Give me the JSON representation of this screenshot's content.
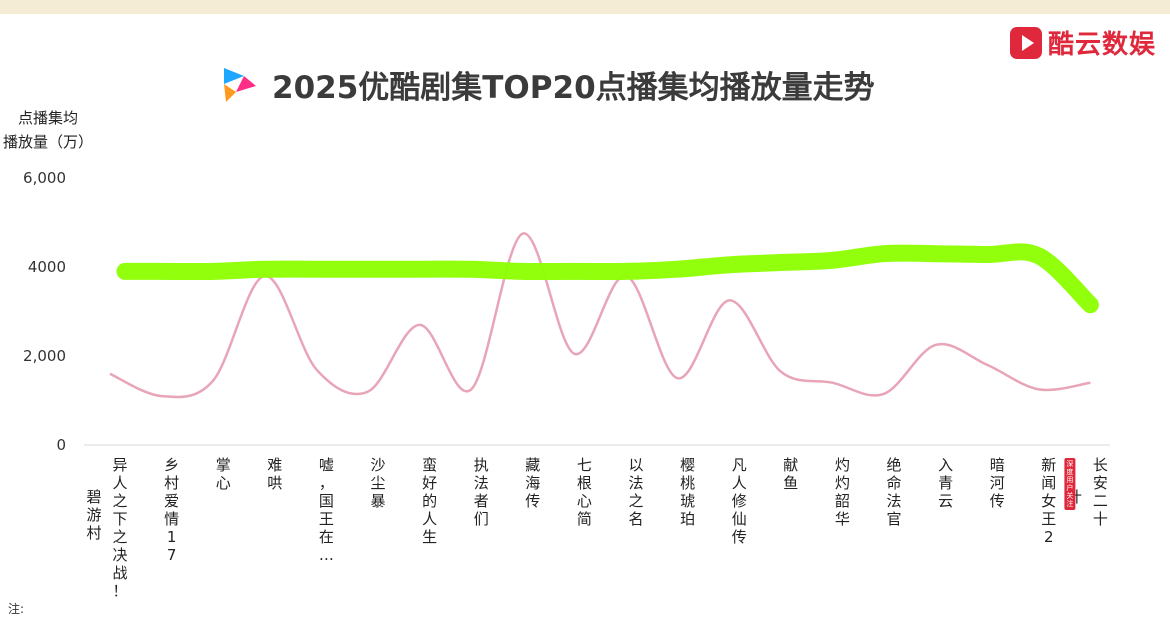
{
  "brand": {
    "name": "酷云数娱",
    "icon": "play-logo-icon",
    "color": "#e0283c"
  },
  "app_logo": {
    "icon": "youku-logo-icon"
  },
  "note": "注:",
  "chart_data": {
    "type": "line",
    "title": "2025优酷剧集TOP20点播集均播放量走势",
    "ylabel_lines": [
      "点播集均",
      "播放量（万）"
    ],
    "xlabel": "",
    "ylim": [
      0,
      6000
    ],
    "yticks": [
      {
        "value": 0,
        "label": "0"
      },
      {
        "value": 2000,
        "label": "2,000"
      },
      {
        "value": 4000,
        "label": "4000"
      },
      {
        "value": 6000,
        "label": "6,000"
      }
    ],
    "categories": [
      "异人之下之决战！碧游村",
      "乡村爱情17",
      "掌心",
      "难哄",
      "嘘，国王在…",
      "沙尘暴",
      "蛮好的人生",
      "执法者们",
      "藏海传",
      "七根心简",
      "以法之名",
      "樱桃琥珀",
      "凡人修仙传",
      "献鱼",
      "灼灼韶华",
      "绝命法官",
      "入青云",
      "暗河传",
      "新闻女王2",
      "长安二十四计"
    ],
    "x_tick_labels": [
      [
        "异人之下之决战！",
        "碧游村"
      ],
      [
        "乡村爱情17"
      ],
      [
        "掌心"
      ],
      [
        "难哄"
      ],
      [
        "嘘，国王在…"
      ],
      [
        "沙尘暴"
      ],
      [
        "蛮好的人生"
      ],
      [
        "执法者们"
      ],
      [
        "藏海传"
      ],
      [
        "七根心简"
      ],
      [
        "以法之名"
      ],
      [
        "樱桃琥珀"
      ],
      [
        "凡人修仙传"
      ],
      [
        "献鱼"
      ],
      [
        "灼灼韶华"
      ],
      [
        "绝命法官"
      ],
      [
        "入青云"
      ],
      [
        "暗河传"
      ],
      [
        "新闻女王2"
      ],
      [
        "长安二十",
        "计"
      ]
    ],
    "series": [
      {
        "values": [
          1600,
          1100,
          1450,
          3800,
          1700,
          1200,
          2700,
          1250,
          4750,
          2050,
          3800,
          1500,
          3250,
          1650,
          1400,
          1150,
          2250,
          1800,
          1250,
          1400
        ],
        "color": "#e8a5b8"
      },
      {
        "annotation": "highlighter-overlay",
        "values": [
          3900,
          3900,
          3900,
          3950,
          3950,
          3950,
          3950,
          3950,
          3900,
          3900,
          3900,
          3950,
          4050,
          4100,
          4150,
          4300,
          4300,
          4280,
          4250,
          3150
        ],
        "color": "#8cff00"
      }
    ],
    "grid": false,
    "legend": "none",
    "badge": {
      "text": "深度用户关注",
      "color": "#e0283c"
    }
  }
}
